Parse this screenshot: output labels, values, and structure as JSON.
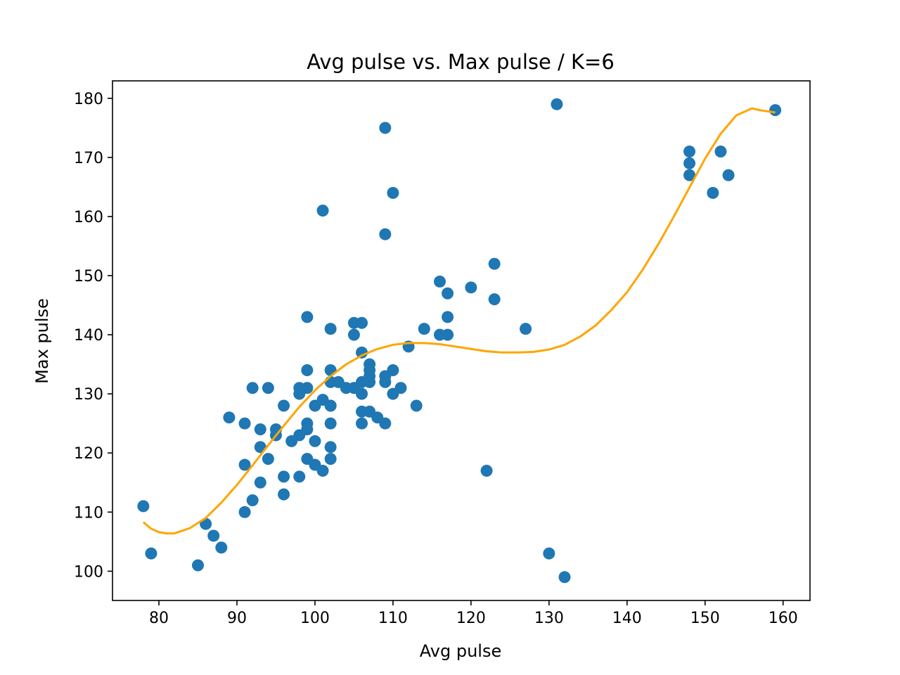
{
  "chart_data": {
    "type": "scatter",
    "title": "Avg pulse vs. Max pulse / K=6",
    "xlabel": "Avg pulse",
    "ylabel": "Max pulse",
    "xlim": [
      74.05,
      163.45
    ],
    "ylim": [
      95.05,
      182.95
    ],
    "xticks": [
      80,
      90,
      100,
      110,
      120,
      130,
      140,
      150,
      160
    ],
    "yticks": [
      100,
      110,
      120,
      130,
      140,
      150,
      160,
      170,
      180
    ],
    "grid": false,
    "colors": {
      "points": "#1f77b4",
      "fit": "#ffa500"
    },
    "series": [
      {
        "kind": "scatter",
        "x": [
          78,
          79,
          85,
          86,
          87,
          88,
          89,
          91,
          91,
          91,
          92,
          92,
          93,
          93,
          93,
          94,
          94,
          95,
          95,
          96,
          96,
          96,
          97,
          98,
          98,
          98,
          98,
          99,
          99,
          99,
          99,
          99,
          99,
          100,
          100,
          100,
          101,
          101,
          102,
          102,
          102,
          102,
          102,
          102,
          102,
          102,
          103,
          104,
          105,
          105,
          105,
          106,
          106,
          106,
          106,
          106,
          106,
          107,
          107,
          107,
          107,
          107,
          108,
          109,
          109,
          109,
          109,
          110,
          110,
          110,
          111,
          112,
          113,
          114,
          116,
          116,
          117,
          117,
          117,
          120,
          122,
          123,
          123,
          127,
          130,
          131,
          132,
          148,
          148,
          148,
          151,
          152,
          153,
          159,
          101,
          109
        ],
        "y": [
          111,
          103,
          101,
          108,
          106,
          104,
          126,
          125,
          118,
          110,
          131,
          112,
          124,
          121,
          115,
          131,
          119,
          124,
          123,
          128,
          116,
          113,
          122,
          131,
          130,
          123,
          116,
          143,
          134,
          131,
          125,
          124,
          119,
          128,
          122,
          118,
          129,
          117,
          141,
          134,
          132,
          128,
          125,
          121,
          119,
          128,
          132,
          131,
          142,
          140,
          131,
          142,
          137,
          132,
          130,
          127,
          125,
          135,
          134,
          133,
          132,
          127,
          126,
          175,
          157,
          133,
          125,
          164,
          134,
          130,
          131,
          138,
          128,
          141,
          149,
          140,
          147,
          143,
          140,
          148,
          117,
          152,
          146,
          141,
          103,
          179,
          99,
          171,
          169,
          167,
          164,
          171,
          167,
          178,
          161,
          132
        ]
      },
      {
        "kind": "polynomial-fit",
        "degree": 6,
        "x": [
          78,
          79,
          80,
          81,
          82,
          84,
          86,
          88,
          90,
          92,
          94,
          96,
          98,
          100,
          102,
          104,
          106,
          108,
          110,
          112,
          114,
          116,
          118,
          120,
          122,
          124,
          126,
          128,
          130,
          132,
          134,
          136,
          138,
          140,
          142,
          144,
          146,
          148,
          150,
          152,
          154,
          156,
          157,
          158,
          159
        ],
        "y": [
          108.3,
          107.2,
          106.6,
          106.4,
          106.4,
          107.3,
          109.0,
          111.6,
          114.6,
          117.9,
          121.3,
          124.6,
          127.8,
          130.6,
          133.0,
          135.0,
          136.5,
          137.6,
          138.3,
          138.6,
          138.6,
          138.4,
          138.0,
          137.6,
          137.2,
          137.0,
          137.0,
          137.1,
          137.5,
          138.3,
          139.7,
          141.6,
          144.2,
          147.2,
          151.0,
          155.3,
          160.0,
          164.9,
          169.8,
          174.0,
          177.1,
          178.3,
          178.0,
          177.8,
          177.6
        ]
      }
    ]
  }
}
